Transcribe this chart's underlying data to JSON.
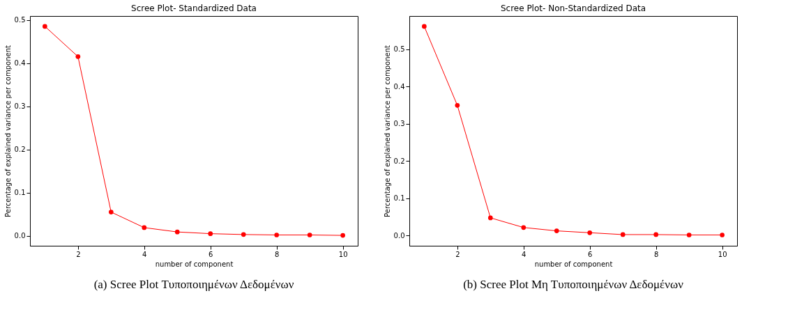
{
  "chart_data": [
    {
      "type": "line",
      "title": "Scree Plot- Standardized Data",
      "xlabel": "number of component",
      "ylabel": "Percentage of explained variance per component",
      "color": "#ff0000",
      "marker": "circle",
      "line_style": "solid",
      "grid": false,
      "x": [
        1,
        2,
        3,
        4,
        5,
        6,
        7,
        8,
        9,
        10
      ],
      "values": [
        0.485,
        0.415,
        0.055,
        0.019,
        0.009,
        0.005,
        0.003,
        0.002,
        0.002,
        0.001
      ],
      "xlim": [
        0.55,
        10.45
      ],
      "ylim": [
        -0.023,
        0.509
      ],
      "xticks": [
        2,
        4,
        6,
        8,
        10
      ],
      "yticks": [
        {
          "value": 0,
          "label": "0.0"
        },
        0.1,
        0.2,
        0.3,
        0.4,
        0.5
      ],
      "annotations": [
        "(a) Scree Plot Τυποποιημένων Δεδομένων"
      ]
    },
    {
      "type": "line",
      "title": "Scree Plot- Non-Standardized Data",
      "xlabel": "number of component",
      "ylabel": "Percentage of explained variance per component",
      "color": "#ff0000",
      "marker": "circle",
      "line_style": "solid",
      "grid": false,
      "x": [
        1,
        2,
        3,
        4,
        5,
        6,
        7,
        8,
        9,
        10
      ],
      "values": [
        0.561,
        0.349,
        0.047,
        0.021,
        0.012,
        0.007,
        0.002,
        0.002,
        0.001,
        0.001
      ],
      "xlim": [
        0.55,
        10.45
      ],
      "ylim": [
        -0.028,
        0.589
      ],
      "xticks": [
        2,
        4,
        6,
        8,
        10
      ],
      "yticks": [
        {
          "value": 0,
          "label": "0.0"
        },
        0.1,
        0.2,
        0.3,
        0.4,
        0.5
      ],
      "annotations": [
        "(b) Scree Plot Μη Τυποποιημένων Δεδομένων"
      ]
    }
  ]
}
